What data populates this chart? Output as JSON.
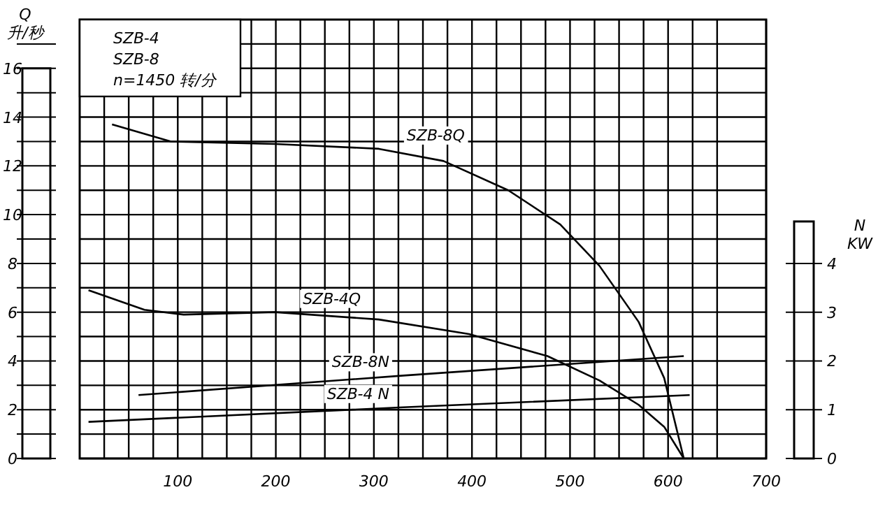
{
  "chart_data": {
    "type": "line",
    "title": "SZB-4",
    "subtitle": "SZB-8",
    "annotations": [
      "n=1450 转/分"
    ],
    "ylabel": "Q 升/秒",
    "y2label": "N KW",
    "xlim": [
      0,
      700
    ],
    "ylim": [
      0,
      18
    ],
    "y2lim": [
      0,
      9
    ],
    "xticks": [
      {
        "value": 25,
        "label": null
      },
      {
        "value": 50,
        "label": null
      },
      {
        "value": 75,
        "label": null
      },
      100,
      {
        "value": 125,
        "label": null
      },
      {
        "value": 150,
        "label": null
      },
      {
        "value": 175,
        "label": null
      },
      200,
      {
        "value": 225,
        "label": null
      },
      {
        "value": 250,
        "label": null
      },
      {
        "value": 275,
        "label": null
      },
      300,
      {
        "value": 325,
        "label": null
      },
      {
        "value": 350,
        "label": null
      },
      {
        "value": 375,
        "label": null
      },
      400,
      {
        "value": 425,
        "label": null
      },
      {
        "value": 450,
        "label": null
      },
      {
        "value": 475,
        "label": null
      },
      500,
      {
        "value": 525,
        "label": null
      },
      {
        "value": 550,
        "label": null
      },
      {
        "value": 575,
        "label": null
      },
      600,
      {
        "value": 625,
        "label": null
      },
      {
        "value": 650,
        "label": null
      },
      {
        "value": 700,
        "label": "700"
      }
    ],
    "yticks": [
      0,
      {
        "value": 1,
        "label": null
      },
      2,
      {
        "value": 3,
        "label": null
      },
      4,
      {
        "value": 5,
        "label": null
      },
      6,
      {
        "value": 7,
        "label": null
      },
      8,
      {
        "value": 9,
        "label": null
      },
      10,
      {
        "value": 11,
        "label": null
      },
      12,
      {
        "value": 13,
        "label": null
      },
      14,
      {
        "value": 15,
        "label": null
      },
      16,
      {
        "value": 17,
        "label": null
      }
    ],
    "y2ticks": [
      0,
      1,
      2,
      3,
      4
    ],
    "grid": true,
    "marker": "none",
    "line_style": "solid",
    "series": [
      {
        "name": "SZB-8Q",
        "color": "#000000",
        "x": [
          33,
          93,
          199,
          305,
          371,
          437,
          490,
          530,
          570,
          596,
          616
        ],
        "values": [
          13.7,
          13.0,
          12.9,
          12.7,
          12.2,
          11.0,
          9.6,
          7.9,
          5.6,
          3.3,
          0
        ]
      },
      {
        "name": "SZB-4Q",
        "color": "#000000",
        "x": [
          9,
          66,
          106,
          199,
          305,
          397,
          477,
          530,
          570,
          596,
          616
        ],
        "values": [
          6.9,
          6.1,
          5.9,
          6.0,
          5.7,
          5.1,
          4.2,
          3.2,
          2.2,
          1.3,
          0
        ]
      },
      {
        "name": "SZB-8N",
        "color": "#000000",
        "axis": "y2",
        "x": [
          60,
          330,
          616
        ],
        "values": [
          1.3,
          1.7,
          2.1
        ]
      },
      {
        "name": "SZB-4 N",
        "color": "#000000",
        "axis": "y2",
        "x": [
          9,
          330,
          622
        ],
        "values": [
          0.75,
          1.05,
          1.3
        ]
      }
    ]
  }
}
